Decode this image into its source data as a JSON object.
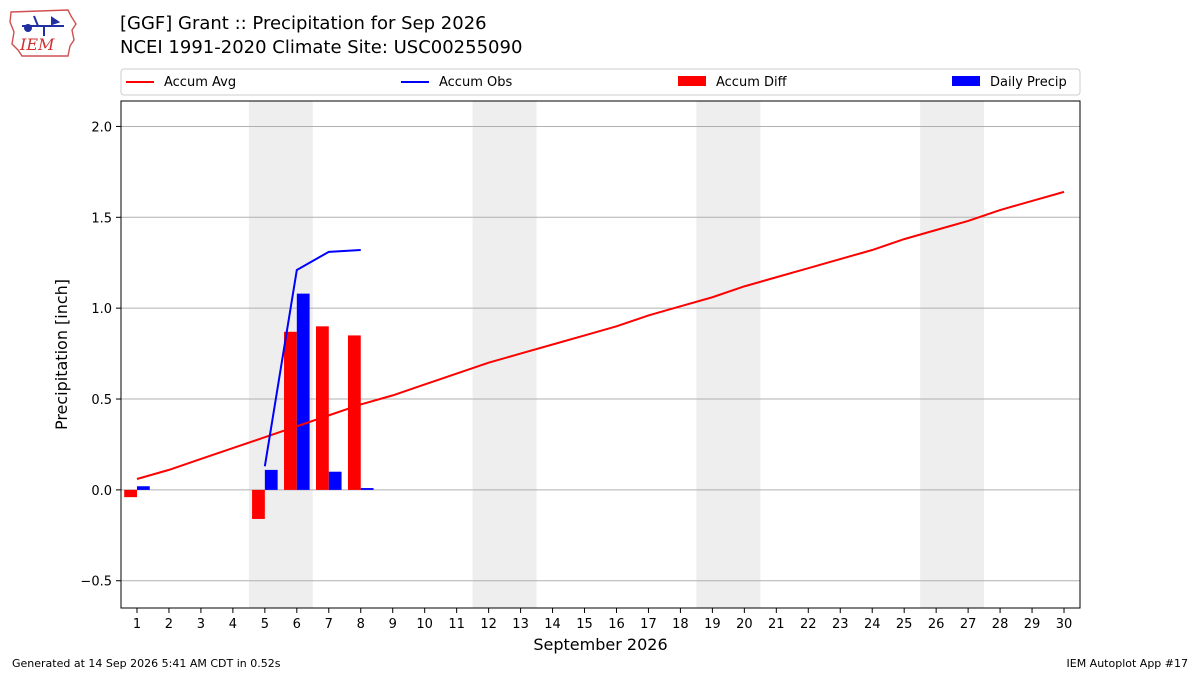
{
  "logo": {
    "text": "IEM"
  },
  "header": {
    "title": "[GGF] Grant :: Precipitation for Sep 2026",
    "subtitle": "NCEI 1991-2020 Climate Site: USC00255090"
  },
  "footer": {
    "left": "Generated at 14 Sep 2026 5:41 AM CDT in 0.52s",
    "right": "IEM Autoplot App #17"
  },
  "colors": {
    "accum_avg": "#ff0000",
    "accum_obs": "#0000ff",
    "accum_diff": "#ff0000",
    "daily_precip": "#0000ff",
    "weekend_shade": "#eeeeee",
    "grid": "#b0b0b0"
  },
  "chart_data": {
    "type": "bar",
    "xlabel": "September 2026",
    "ylabel": "Precipitation [inch]",
    "xlim": [
      0.5,
      30.5
    ],
    "ylim": [
      -0.65,
      2.14
    ],
    "x_ticks": [
      1,
      2,
      3,
      4,
      5,
      6,
      7,
      8,
      9,
      10,
      11,
      12,
      13,
      14,
      15,
      16,
      17,
      18,
      19,
      20,
      21,
      22,
      23,
      24,
      25,
      26,
      27,
      28,
      29,
      30
    ],
    "y_ticks": [
      -0.5,
      0.0,
      0.5,
      1.0,
      1.5,
      2.0
    ],
    "y_tick_labels": [
      "−0.5",
      "0.0",
      "0.5",
      "1.0",
      "1.5",
      "2.0"
    ],
    "grid": "horizontal",
    "legend_position": "top",
    "legend": [
      "Accum Avg",
      "Accum Obs",
      "Accum Diff",
      "Daily Precip"
    ],
    "shaded_weekends": [
      [
        5,
        6
      ],
      [
        12,
        13
      ],
      [
        19,
        20
      ],
      [
        26,
        27
      ]
    ],
    "series": [
      {
        "name": "Accum Avg",
        "kind": "line",
        "x": [
          1,
          2,
          3,
          4,
          5,
          6,
          7,
          8,
          9,
          10,
          11,
          12,
          13,
          14,
          15,
          16,
          17,
          18,
          19,
          20,
          21,
          22,
          23,
          24,
          25,
          26,
          27,
          28,
          29,
          30
        ],
        "values": [
          0.06,
          0.11,
          0.17,
          0.23,
          0.29,
          0.35,
          0.41,
          0.47,
          0.52,
          0.58,
          0.64,
          0.7,
          0.75,
          0.8,
          0.85,
          0.9,
          0.96,
          1.01,
          1.06,
          1.12,
          1.17,
          1.22,
          1.27,
          1.32,
          1.38,
          1.43,
          1.48,
          1.54,
          1.59,
          1.64
        ]
      },
      {
        "name": "Accum Obs",
        "kind": "line",
        "x": [
          5,
          6,
          7,
          8
        ],
        "values": [
          0.13,
          1.21,
          1.31,
          1.32
        ]
      },
      {
        "name": "Accum Diff",
        "kind": "bar",
        "x": [
          1,
          5,
          6,
          7,
          8
        ],
        "values": [
          -0.04,
          -0.16,
          0.87,
          0.9,
          0.85
        ]
      },
      {
        "name": "Daily Precip",
        "kind": "bar",
        "x": [
          1,
          5,
          6,
          7,
          8
        ],
        "values": [
          0.02,
          0.11,
          1.08,
          0.1,
          0.01
        ]
      }
    ]
  }
}
